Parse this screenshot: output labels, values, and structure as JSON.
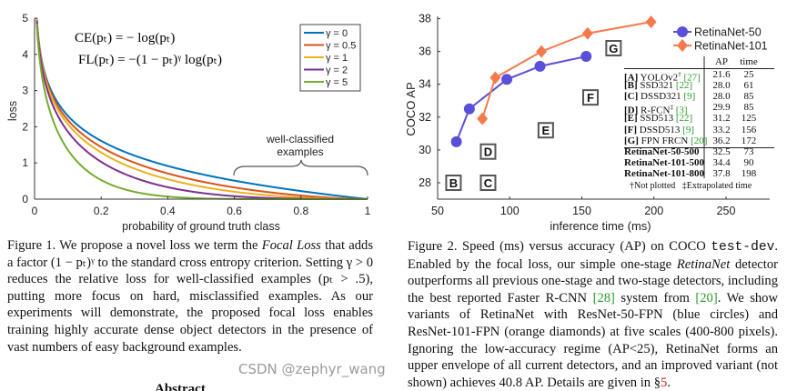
{
  "figure1": {
    "formula_ce": "CE(pₜ) = − log(pₜ)",
    "formula_fl": "FL(pₜ) = −(1 − pₜ)ᵞ log(pₜ)",
    "annotation_line1": "well-classified",
    "annotation_line2": "examples",
    "caption": [
      {
        "text": "Figure 1. We propose a novel loss we term the ",
        "style": "normal"
      },
      {
        "text": "Focal Loss",
        "style": "italic"
      },
      {
        "text": " that adds a factor (1 − pₜ)ᵞ to the standard cross entropy criterion. Setting γ > 0 reduces the relative loss for well-classified examples (pₜ > .5), putting more focus on hard, misclassified examples. As our experiments will demonstrate, the proposed focal loss enables training highly accurate dense object detectors in the presence of vast numbers of easy background examples.",
        "style": "normal"
      }
    ]
  },
  "figure2": {
    "caption": [
      {
        "text": "Figure 2. Speed (ms) versus accuracy (AP) on COCO ",
        "style": "normal"
      },
      {
        "text": "test-dev",
        "style": "mono"
      },
      {
        "text": ". Enabled by the focal loss, our simple one-stage ",
        "style": "normal"
      },
      {
        "text": "RetinaNet",
        "style": "italic"
      },
      {
        "text": " detector outperforms all previous one-stage and two-stage detectors, including the best reported Faster R-CNN ",
        "style": "normal"
      },
      {
        "text": "[28]",
        "style": "cite"
      },
      {
        "text": " system from ",
        "style": "normal"
      },
      {
        "text": "[20]",
        "style": "cite"
      },
      {
        "text": ". We show variants of RetinaNet with ResNet-50-FPN (blue circles) and ResNet-101-FPN (orange diamonds) at five scales (400-800 pixels). Ignoring the low-accuracy regime (AP<25), RetinaNet forms an upper envelope of all current detectors, and an improved variant (not shown) achieves 40.8 AP. Details are given in §",
        "style": "normal"
      },
      {
        "text": "5",
        "style": "red"
      },
      {
        "text": ".",
        "style": "normal"
      }
    ],
    "table": {
      "headers": [
        "AP",
        "time"
      ],
      "rows": [
        {
          "key": "[A]",
          "name": " YOLOv2",
          "mark": "†",
          "cite": "[27]",
          "ap": "21.6",
          "time": "25"
        },
        {
          "key": "[B]",
          "name": " SSD321 ",
          "mark": "",
          "cite": "[22]",
          "ap": "28.0",
          "time": "61"
        },
        {
          "key": "[C]",
          "name": " DSSD321 ",
          "mark": "",
          "cite": "[9]",
          "ap": "28.0",
          "time": "85"
        },
        {
          "key": "[D]",
          "name": " R-FCN",
          "mark": "‡",
          "cite": "[3]",
          "ap": "29.9",
          "time": "85"
        },
        {
          "key": "[E]",
          "name": " SSD513 ",
          "mark": "",
          "cite": "[22]",
          "ap": "31.2",
          "time": "125"
        },
        {
          "key": "[F]",
          "name": " DSSD513 ",
          "mark": "",
          "cite": "[9]",
          "ap": "33.2",
          "time": "156"
        },
        {
          "key": "[G]",
          "name": " FPN FRCN ",
          "mark": "",
          "cite": "[20]",
          "ap": "36.2",
          "time": "172"
        }
      ],
      "retina_rows": [
        {
          "name": "RetinaNet-50-500",
          "ap": "32.5",
          "time": "73"
        },
        {
          "name": "RetinaNet-101-500",
          "ap": "34.4",
          "time": "90"
        },
        {
          "name": "RetinaNet-101-800",
          "ap": "37.8",
          "time": "198"
        }
      ],
      "footnote": "†Not plotted   ‡Extrapolated time"
    }
  },
  "abstract_heading": "Abstract",
  "watermark": "CSDN @zephyr_wang",
  "chart_data": [
    {
      "type": "line",
      "xlabel": "probability of ground truth class",
      "ylabel": "loss",
      "xlim": [
        0,
        1
      ],
      "ylim": [
        0,
        5
      ],
      "xticks": [
        "0",
        "0.2",
        "0.4",
        "0.6",
        "0.8",
        "1"
      ],
      "yticks": [
        "0",
        "1",
        "2",
        "3",
        "4",
        "5"
      ],
      "grid": false,
      "legend": "top-right",
      "function": "-(1 - p)^gamma * log(p)",
      "series": [
        {
          "name": "γ = 0",
          "gamma": 0,
          "color": "#0072BD"
        },
        {
          "name": "γ = 0.5",
          "gamma": 0.5,
          "color": "#D95319"
        },
        {
          "name": "γ = 1",
          "gamma": 1,
          "color": "#EDB120"
        },
        {
          "name": "γ = 2",
          "gamma": 2,
          "color": "#7E2F8E"
        },
        {
          "name": "γ = 5",
          "gamma": 5,
          "color": "#77AC30"
        }
      ]
    },
    {
      "type": "scatter",
      "xlabel": "inference time (ms)",
      "ylabel": "COCO AP",
      "xlim": [
        50,
        280
      ],
      "ylim": [
        27,
        38
      ],
      "xticks": [
        "50",
        "100",
        "150",
        "200",
        "250"
      ],
      "yticks": [
        "28",
        "30",
        "32",
        "34",
        "36",
        "38"
      ],
      "grid": false,
      "legend": "top-right",
      "series": [
        {
          "name": "RetinaNet-50",
          "marker": "circle",
          "color": "#5a4fd8",
          "x": [
            63,
            72,
            98,
            121,
            153
          ],
          "y": [
            30.5,
            32.5,
            34.3,
            35.1,
            35.7
          ]
        },
        {
          "name": "RetinaNet-101",
          "marker": "diamond",
          "color": "#f47a4c",
          "x": [
            81,
            90,
            122,
            154,
            198
          ],
          "y": [
            31.9,
            34.4,
            36.0,
            37.1,
            37.8
          ]
        }
      ],
      "labeled_points": [
        {
          "label": "B",
          "x": 61,
          "y": 28.0
        },
        {
          "label": "C",
          "x": 85,
          "y": 28.0
        },
        {
          "label": "D",
          "x": 85,
          "y": 29.9
        },
        {
          "label": "E",
          "x": 125,
          "y": 31.2
        },
        {
          "label": "F",
          "x": 156,
          "y": 33.2
        },
        {
          "label": "G",
          "x": 172,
          "y": 36.2
        }
      ]
    }
  ]
}
